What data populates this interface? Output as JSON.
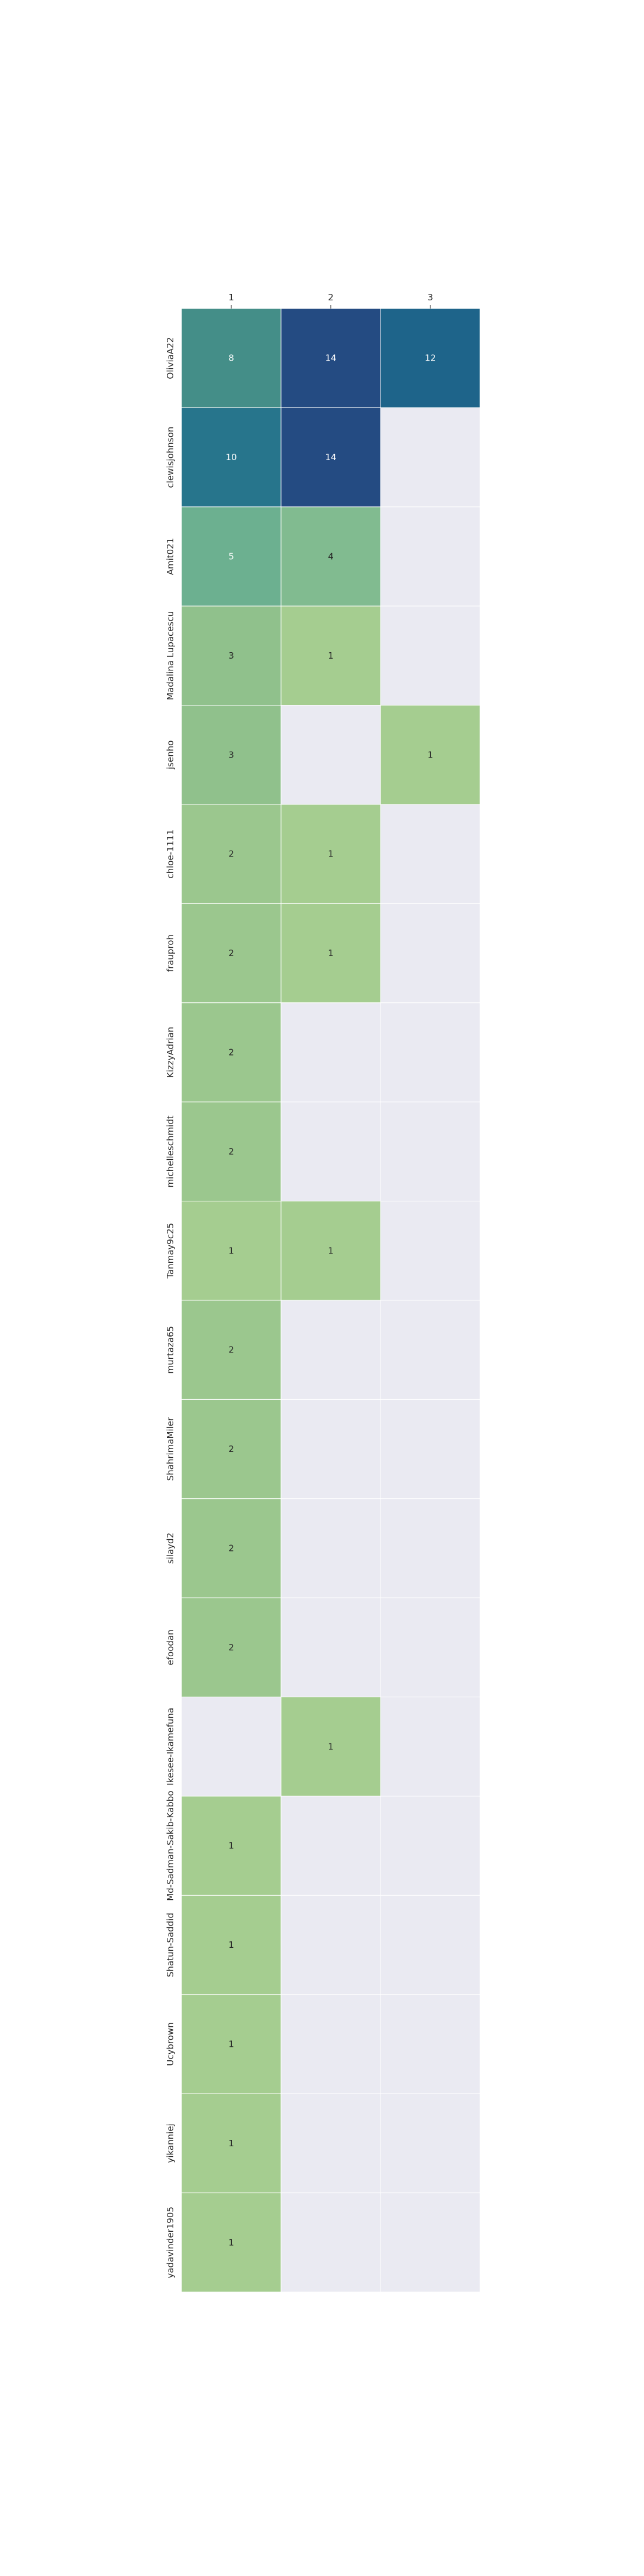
{
  "chart_data": {
    "type": "heatmap",
    "title": "",
    "xlabel": "",
    "ylabel": "",
    "x_categories": [
      "1",
      "2",
      "3"
    ],
    "x_tick_position": "top",
    "rows": [
      {
        "label": "OliviaA22",
        "values": [
          8,
          14,
          12
        ]
      },
      {
        "label": "clewisjohnson",
        "values": [
          10,
          14,
          null
        ]
      },
      {
        "label": "Amit021",
        "values": [
          5,
          4,
          null
        ]
      },
      {
        "label": "Madalina Lupacescu",
        "values": [
          3,
          1,
          null
        ]
      },
      {
        "label": "jsenho",
        "values": [
          3,
          null,
          1
        ]
      },
      {
        "label": "chloe-1111",
        "values": [
          2,
          1,
          null
        ]
      },
      {
        "label": "frauproh",
        "values": [
          2,
          1,
          null
        ]
      },
      {
        "label": "KizzyAdrian",
        "values": [
          2,
          null,
          null
        ]
      },
      {
        "label": "michelleschmidt",
        "values": [
          2,
          null,
          null
        ]
      },
      {
        "label": "Tanmay9c25",
        "values": [
          1,
          1,
          null
        ]
      },
      {
        "label": "murtaza65",
        "values": [
          2,
          null,
          null
        ]
      },
      {
        "label": "ShahrimaMiler",
        "values": [
          2,
          null,
          null
        ]
      },
      {
        "label": "silayd2",
        "values": [
          2,
          null,
          null
        ]
      },
      {
        "label": "efoodan",
        "values": [
          2,
          null,
          null
        ]
      },
      {
        "label": "Ikesee-Ikamefuna",
        "values": [
          null,
          1,
          null
        ]
      },
      {
        "label": "Md-Sadman-Sakib-Kabbo",
        "values": [
          1,
          null,
          null
        ]
      },
      {
        "label": "Shatun-Saddid",
        "values": [
          1,
          null,
          null
        ]
      },
      {
        "label": "Ucybrown",
        "values": [
          1,
          null,
          null
        ]
      },
      {
        "label": "yikanniej",
        "values": [
          1,
          null,
          null
        ]
      },
      {
        "label": "yadavinder1905",
        "values": [
          1,
          null,
          null
        ]
      }
    ],
    "value_range": [
      1,
      14
    ],
    "colormap": "crest",
    "missing_color": "#eaeaf2",
    "grid_line_color": "#ffffff",
    "annotate_values": true,
    "legend": "none"
  }
}
